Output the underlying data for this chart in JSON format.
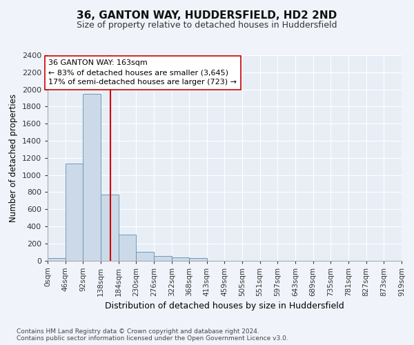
{
  "title1": "36, GANTON WAY, HUDDERSFIELD, HD2 2ND",
  "title2": "Size of property relative to detached houses in Huddersfield",
  "xlabel": "Distribution of detached houses by size in Huddersfield",
  "ylabel": "Number of detached properties",
  "bin_edges": [
    0,
    46,
    92,
    138,
    184,
    230,
    276,
    322,
    368,
    413,
    459,
    505,
    551,
    597,
    643,
    689,
    735,
    781,
    827,
    873,
    919
  ],
  "bin_counts": [
    30,
    1130,
    1950,
    770,
    300,
    100,
    50,
    40,
    30,
    0,
    0,
    0,
    0,
    0,
    0,
    0,
    0,
    0,
    0,
    0
  ],
  "bar_facecolor": "#ccd9e8",
  "bar_edgecolor": "#6090b0",
  "property_size": 163,
  "vline_color": "#cc0000",
  "annotation_line1": "36 GANTON WAY: 163sqm",
  "annotation_line2": "← 83% of detached houses are smaller (3,645)",
  "annotation_line3": "17% of semi-detached houses are larger (723) →",
  "annotation_box_edgecolor": "#cc0000",
  "annotation_box_facecolor": "#ffffff",
  "ylim": [
    0,
    2400
  ],
  "yticks": [
    0,
    200,
    400,
    600,
    800,
    1000,
    1200,
    1400,
    1600,
    1800,
    2000,
    2200,
    2400
  ],
  "tick_labels": [
    "0sqm",
    "46sqm",
    "92sqm",
    "138sqm",
    "184sqm",
    "230sqm",
    "276sqm",
    "322sqm",
    "368sqm",
    "413sqm",
    "459sqm",
    "505sqm",
    "551sqm",
    "597sqm",
    "643sqm",
    "689sqm",
    "735sqm",
    "781sqm",
    "827sqm",
    "873sqm",
    "919sqm"
  ],
  "footer_text": "Contains HM Land Registry data © Crown copyright and database right 2024.\nContains public sector information licensed under the Open Government Licence v3.0.",
  "fig_facecolor": "#f0f4fa",
  "plot_facecolor": "#e8eef6",
  "grid_color": "#ffffff"
}
